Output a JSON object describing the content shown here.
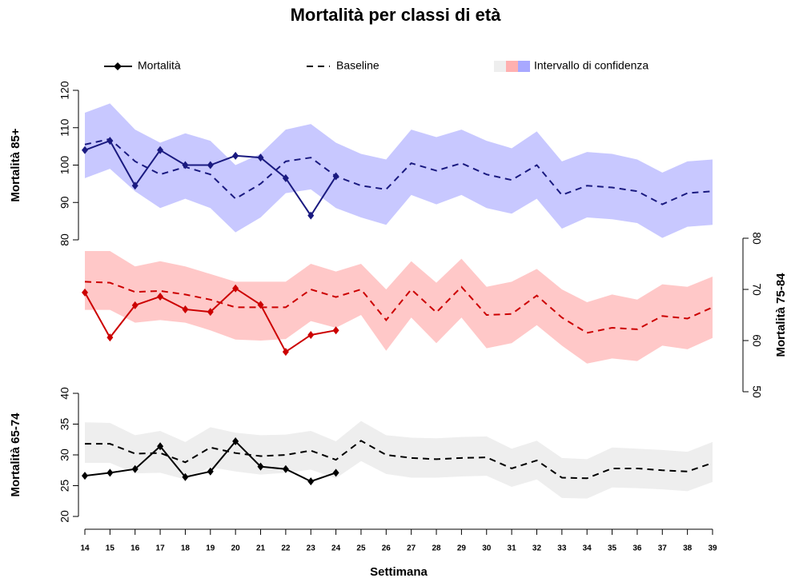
{
  "chart_data": {
    "type": "line",
    "title": "Mortalità per classi di età",
    "xlabel": "Settimana",
    "legend": [
      "Mortalità",
      "Baseline",
      "Intervallo di confidenza"
    ],
    "x": [
      14,
      15,
      16,
      17,
      18,
      19,
      20,
      21,
      22,
      23,
      24,
      25,
      26,
      27,
      28,
      29,
      30,
      31,
      32,
      33,
      34,
      35,
      36,
      37,
      38,
      39
    ],
    "xlim": [
      14,
      39
    ],
    "xticks": [
      14,
      15,
      16,
      17,
      18,
      19,
      20,
      21,
      22,
      23,
      24,
      25,
      26,
      27,
      28,
      29,
      30,
      31,
      32,
      33,
      34,
      35,
      36,
      37,
      38,
      39
    ],
    "panels": [
      {
        "ylabel": "Mortalità 85+",
        "axis_side": "left",
        "ylim": [
          80,
          120
        ],
        "yticks": [
          80,
          90,
          100,
          110,
          120
        ],
        "line_color": "#1a1a80",
        "band_color": "#c8c8ff",
        "mortality": [
          104,
          106.5,
          94.5,
          104,
          100,
          100,
          102.5,
          102,
          96.5,
          86.5,
          97,
          null,
          null,
          null,
          null,
          null,
          null,
          null,
          null,
          null,
          null,
          null,
          null,
          null,
          null,
          null
        ],
        "baseline": [
          105.5,
          107,
          101,
          97.5,
          99.5,
          97.5,
          91,
          95,
          101,
          102,
          97,
          94.5,
          93.5,
          100.5,
          98.5,
          100.5,
          97.5,
          96,
          100,
          92,
          94.5,
          94,
          93,
          89.5,
          92.5,
          93
        ],
        "ci_upper": [
          114,
          116.5,
          109.5,
          106,
          108.5,
          106.5,
          100,
          103,
          109.5,
          111,
          106,
          103,
          101.5,
          109.5,
          107.5,
          109.5,
          106.5,
          104.5,
          109,
          101,
          103.5,
          103,
          101.5,
          98,
          101,
          101.5
        ],
        "ci_lower": [
          96.5,
          99,
          93,
          88.5,
          91,
          88.5,
          82,
          86,
          92.5,
          93.5,
          88.5,
          86,
          84,
          92,
          89.5,
          92,
          88.5,
          87,
          91,
          83,
          86,
          85.5,
          84.5,
          80.5,
          83.5,
          84
        ]
      },
      {
        "ylabel": "Mortalità 75-84",
        "axis_side": "right",
        "ylim": [
          50,
          80
        ],
        "yticks": [
          50,
          60,
          70,
          80
        ],
        "line_color": "#cc0000",
        "band_color": "#ffc8c8",
        "mortality": [
          69.4,
          60.6,
          66.9,
          68.6,
          66.1,
          65.6,
          70.2,
          67,
          57.8,
          61.1,
          62,
          null,
          null,
          null,
          null,
          null,
          null,
          null,
          null,
          null,
          null,
          null,
          null,
          null,
          null,
          null
        ],
        "baseline": [
          71.5,
          71.3,
          69.5,
          69.7,
          69,
          68,
          66.5,
          66.5,
          66.5,
          70,
          68.5,
          70,
          64,
          70,
          65.5,
          70.5,
          65,
          65.2,
          68.8,
          64.5,
          61.5,
          62.5,
          62.2,
          64.8,
          64.3,
          66.5
        ],
        "ci_upper": [
          77.5,
          77.5,
          74.5,
          75.5,
          74.5,
          73,
          71.5,
          71.5,
          71.5,
          75,
          73.5,
          75,
          70,
          75.5,
          71.3,
          76,
          70.5,
          71.5,
          74,
          70,
          67.5,
          69,
          68,
          71,
          70.5,
          72.5
        ],
        "ci_lower": [
          66,
          66,
          63.5,
          64,
          63.5,
          62,
          60.2,
          60,
          60.3,
          63.8,
          62.5,
          65,
          58,
          64.5,
          59.5,
          64.5,
          58.5,
          59.5,
          63,
          59,
          55.5,
          56.5,
          56,
          59,
          58.3,
          60.5
        ]
      },
      {
        "ylabel": "Mortalità 65-74",
        "axis_side": "left",
        "ylim": [
          20,
          40
        ],
        "yticks": [
          20,
          25,
          30,
          35,
          40
        ],
        "line_color": "#000000",
        "band_color": "#eeeeee",
        "mortality": [
          26.6,
          27.1,
          27.7,
          31.4,
          26.4,
          27.3,
          32.2,
          28.1,
          27.7,
          25.7,
          27.1,
          null,
          null,
          null,
          null,
          null,
          null,
          null,
          null,
          null,
          null,
          null,
          null,
          null,
          null,
          null
        ],
        "baseline": [
          31.8,
          31.8,
          30.2,
          30.3,
          28.8,
          31.2,
          30.3,
          29.8,
          30,
          30.7,
          29.2,
          32.3,
          30,
          29.5,
          29.3,
          29.5,
          29.6,
          27.8,
          29.1,
          26.3,
          26.2,
          27.8,
          27.8,
          27.5,
          27.3,
          28.7
        ],
        "ci_upper": [
          35.3,
          35.2,
          33.2,
          33.9,
          32.1,
          34.5,
          33.6,
          33.2,
          33.3,
          33.9,
          32.2,
          35.5,
          33.2,
          32.8,
          32.7,
          32.9,
          33,
          31,
          32.3,
          29.5,
          29.3,
          31.2,
          31,
          30.8,
          30.5,
          32.1
        ],
        "ci_lower": [
          28.7,
          28.7,
          27,
          27.1,
          26,
          28,
          27.3,
          26.8,
          27.1,
          27.6,
          26.2,
          29,
          26.9,
          26.3,
          26.3,
          26.5,
          26.6,
          24.8,
          26,
          23,
          22.9,
          24.7,
          24.6,
          24.4,
          24.1,
          25.6
        ]
      }
    ]
  }
}
